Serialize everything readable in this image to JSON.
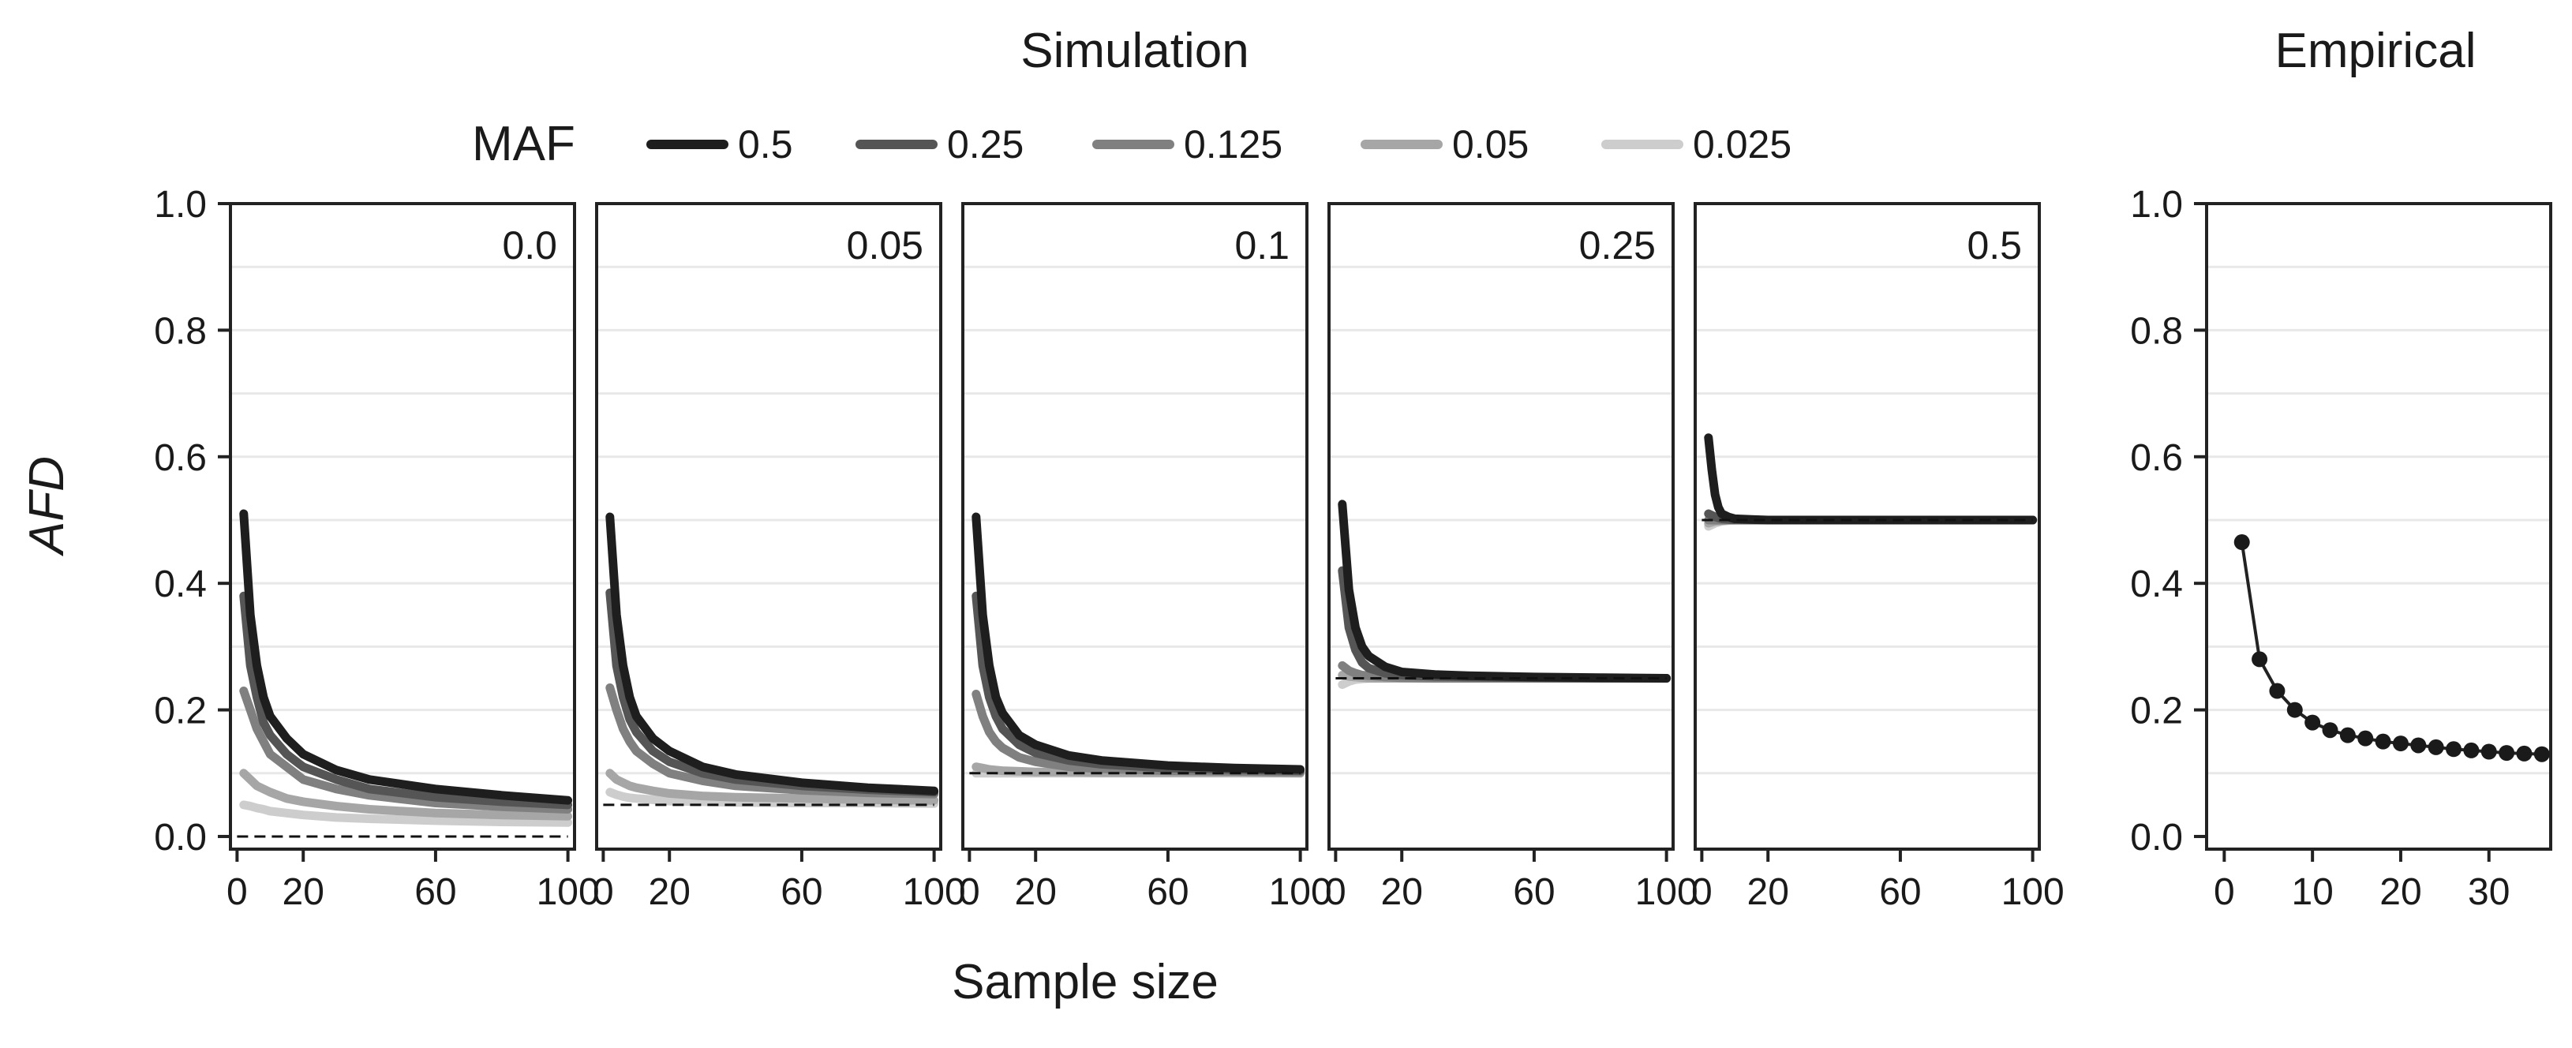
{
  "chart_data": {
    "type": "line",
    "simulation": {
      "title": "Simulation",
      "xlabel": "Sample size",
      "ylabel": "AFD",
      "legend_title": "MAF",
      "legend": [
        {
          "label": "0.5",
          "color": "#1e1e1e"
        },
        {
          "label": "0.25",
          "color": "#555555"
        },
        {
          "label": "0.125",
          "color": "#808080"
        },
        {
          "label": "0.05",
          "color": "#a6a6a6"
        },
        {
          "label": "0.025",
          "color": "#cdcdcd"
        }
      ],
      "xlim": [
        -2,
        102
      ],
      "ylim": [
        -0.02,
        1.0
      ],
      "xticks": [
        0,
        20,
        60,
        100
      ],
      "xtick_labels": [
        "0",
        "20",
        "60",
        "100"
      ],
      "yticks": [
        0.0,
        0.2,
        0.4,
        0.6,
        0.8,
        1.0
      ],
      "ytick_labels": [
        "0.0",
        "0.2",
        "0.4",
        "0.6",
        "0.8",
        "1.0"
      ],
      "panels": [
        {
          "label": "0.0",
          "baseline": 0.0,
          "series": [
            {
              "name": "0.5",
              "x": [
                2,
                4,
                6,
                8,
                10,
                15,
                20,
                30,
                40,
                60,
                80,
                100
              ],
              "y": [
                0.51,
                0.35,
                0.27,
                0.22,
                0.19,
                0.155,
                0.13,
                0.105,
                0.09,
                0.075,
                0.065,
                0.057
              ]
            },
            {
              "name": "0.25",
              "x": [
                2,
                4,
                6,
                8,
                10,
                15,
                20,
                30,
                40,
                60,
                80,
                100
              ],
              "y": [
                0.38,
                0.27,
                0.22,
                0.18,
                0.16,
                0.13,
                0.11,
                0.09,
                0.075,
                0.062,
                0.055,
                0.05
              ]
            },
            {
              "name": "0.125",
              "x": [
                2,
                4,
                6,
                8,
                10,
                15,
                20,
                30,
                40,
                60,
                80,
                100
              ],
              "y": [
                0.23,
                0.2,
                0.17,
                0.15,
                0.13,
                0.11,
                0.09,
                0.075,
                0.065,
                0.053,
                0.047,
                0.043
              ]
            },
            {
              "name": "0.05",
              "x": [
                2,
                4,
                6,
                8,
                10,
                15,
                20,
                30,
                40,
                60,
                80,
                100
              ],
              "y": [
                0.1,
                0.09,
                0.08,
                0.075,
                0.07,
                0.06,
                0.055,
                0.048,
                0.043,
                0.037,
                0.034,
                0.032
              ]
            },
            {
              "name": "0.025",
              "x": [
                2,
                4,
                6,
                8,
                10,
                15,
                20,
                30,
                40,
                60,
                80,
                100
              ],
              "y": [
                0.05,
                0.048,
                0.045,
                0.043,
                0.04,
                0.037,
                0.034,
                0.03,
                0.028,
                0.025,
                0.023,
                0.022
              ]
            }
          ]
        },
        {
          "label": "0.05",
          "baseline": 0.05,
          "series": [
            {
              "name": "0.5",
              "x": [
                2,
                4,
                6,
                8,
                10,
                15,
                20,
                30,
                40,
                60,
                80,
                100
              ],
              "y": [
                0.505,
                0.35,
                0.27,
                0.22,
                0.19,
                0.155,
                0.135,
                0.11,
                0.098,
                0.085,
                0.077,
                0.072
              ]
            },
            {
              "name": "0.25",
              "x": [
                2,
                4,
                6,
                8,
                10,
                15,
                20,
                30,
                40,
                60,
                80,
                100
              ],
              "y": [
                0.385,
                0.27,
                0.22,
                0.185,
                0.165,
                0.135,
                0.118,
                0.1,
                0.09,
                0.08,
                0.074,
                0.07
              ]
            },
            {
              "name": "0.125",
              "x": [
                2,
                4,
                6,
                8,
                10,
                15,
                20,
                30,
                40,
                60,
                80,
                100
              ],
              "y": [
                0.235,
                0.2,
                0.17,
                0.15,
                0.135,
                0.115,
                0.1,
                0.088,
                0.08,
                0.073,
                0.069,
                0.067
              ]
            },
            {
              "name": "0.05",
              "x": [
                2,
                4,
                6,
                8,
                10,
                15,
                20,
                30,
                40,
                60,
                80,
                100
              ],
              "y": [
                0.1,
                0.09,
                0.085,
                0.08,
                0.077,
                0.072,
                0.068,
                0.064,
                0.062,
                0.06,
                0.058,
                0.057
              ]
            },
            {
              "name": "0.025",
              "x": [
                2,
                4,
                6,
                8,
                10,
                15,
                20,
                30,
                40,
                60,
                80,
                100
              ],
              "y": [
                0.07,
                0.066,
                0.063,
                0.061,
                0.06,
                0.058,
                0.056,
                0.055,
                0.054,
                0.053,
                0.053,
                0.052
              ]
            }
          ]
        },
        {
          "label": "0.1",
          "baseline": 0.1,
          "series": [
            {
              "name": "0.5",
              "x": [
                2,
                4,
                6,
                8,
                10,
                15,
                20,
                30,
                40,
                60,
                80,
                100
              ],
              "y": [
                0.505,
                0.35,
                0.27,
                0.22,
                0.195,
                0.16,
                0.145,
                0.128,
                0.12,
                0.112,
                0.108,
                0.106
              ]
            },
            {
              "name": "0.25",
              "x": [
                2,
                4,
                6,
                8,
                10,
                15,
                20,
                30,
                40,
                60,
                80,
                100
              ],
              "y": [
                0.38,
                0.27,
                0.22,
                0.19,
                0.17,
                0.145,
                0.132,
                0.12,
                0.114,
                0.108,
                0.106,
                0.104
              ]
            },
            {
              "name": "0.125",
              "x": [
                2,
                4,
                6,
                8,
                10,
                15,
                20,
                30,
                40,
                60,
                80,
                100
              ],
              "y": [
                0.225,
                0.19,
                0.165,
                0.15,
                0.14,
                0.125,
                0.118,
                0.11,
                0.107,
                0.104,
                0.103,
                0.102
              ]
            },
            {
              "name": "0.05",
              "x": [
                2,
                4,
                6,
                8,
                10,
                15,
                20,
                30,
                40,
                60,
                80,
                100
              ],
              "y": [
                0.11,
                0.108,
                0.106,
                0.105,
                0.104,
                0.103,
                0.102,
                0.102,
                0.101,
                0.101,
                0.101,
                0.1
              ]
            },
            {
              "name": "0.025",
              "x": [
                2,
                4,
                6,
                8,
                10,
                15,
                20,
                30,
                40,
                60,
                80,
                100
              ],
              "y": [
                0.1,
                0.1,
                0.1,
                0.1,
                0.1,
                0.1,
                0.1,
                0.1,
                0.1,
                0.1,
                0.1,
                0.1
              ]
            }
          ]
        },
        {
          "label": "0.25",
          "baseline": 0.25,
          "series": [
            {
              "name": "0.5",
              "x": [
                2,
                4,
                6,
                8,
                10,
                15,
                20,
                30,
                40,
                60,
                80,
                100
              ],
              "y": [
                0.525,
                0.39,
                0.33,
                0.3,
                0.285,
                0.268,
                0.26,
                0.256,
                0.254,
                0.252,
                0.251,
                0.25
              ]
            },
            {
              "name": "0.25",
              "x": [
                2,
                4,
                6,
                8,
                10,
                15,
                20,
                30,
                40,
                60,
                80,
                100
              ],
              "y": [
                0.42,
                0.33,
                0.295,
                0.275,
                0.266,
                0.258,
                0.255,
                0.253,
                0.252,
                0.251,
                0.25,
                0.25
              ]
            },
            {
              "name": "0.125",
              "x": [
                2,
                4,
                6,
                8,
                10,
                15,
                20,
                30,
                40,
                60,
                80,
                100
              ],
              "y": [
                0.27,
                0.262,
                0.258,
                0.255,
                0.254,
                0.252,
                0.251,
                0.25,
                0.25,
                0.25,
                0.25,
                0.25
              ]
            },
            {
              "name": "0.05",
              "x": [
                2,
                4,
                6,
                8,
                10,
                15,
                20,
                30,
                40,
                60,
                80,
                100
              ],
              "y": [
                0.255,
                0.253,
                0.252,
                0.251,
                0.25,
                0.25,
                0.25,
                0.25,
                0.25,
                0.25,
                0.25,
                0.25
              ]
            },
            {
              "name": "0.025",
              "x": [
                2,
                4,
                6,
                8,
                10,
                15,
                20,
                30,
                40,
                60,
                80,
                100
              ],
              "y": [
                0.24,
                0.245,
                0.248,
                0.249,
                0.25,
                0.25,
                0.25,
                0.25,
                0.25,
                0.25,
                0.25,
                0.25
              ]
            }
          ]
        },
        {
          "label": "0.5",
          "baseline": 0.5,
          "series": [
            {
              "name": "0.5",
              "x": [
                2,
                3,
                4,
                5,
                6,
                8,
                10,
                15,
                20,
                30,
                40,
                60,
                80,
                100
              ],
              "y": [
                0.63,
                0.58,
                0.54,
                0.52,
                0.51,
                0.505,
                0.502,
                0.501,
                0.5,
                0.5,
                0.5,
                0.5,
                0.5,
                0.5
              ]
            },
            {
              "name": "0.25",
              "x": [
                2,
                4,
                6,
                8,
                10,
                15,
                20,
                30,
                40,
                60,
                80,
                100
              ],
              "y": [
                0.51,
                0.505,
                0.502,
                0.501,
                0.5,
                0.5,
                0.5,
                0.5,
                0.5,
                0.5,
                0.5,
                0.5
              ]
            },
            {
              "name": "0.125",
              "x": [
                2,
                4,
                6,
                8,
                10,
                15,
                20,
                30,
                40,
                60,
                80,
                100
              ],
              "y": [
                0.5,
                0.5,
                0.5,
                0.5,
                0.5,
                0.5,
                0.5,
                0.5,
                0.5,
                0.5,
                0.5,
                0.5
              ]
            },
            {
              "name": "0.05",
              "x": [
                2,
                4,
                6,
                8,
                10,
                15,
                20,
                30,
                40,
                60,
                80,
                100
              ],
              "y": [
                0.495,
                0.498,
                0.499,
                0.5,
                0.5,
                0.5,
                0.5,
                0.5,
                0.5,
                0.5,
                0.5,
                0.5
              ]
            },
            {
              "name": "0.025",
              "x": [
                2,
                4,
                6,
                8,
                10,
                15,
                20,
                30,
                40,
                60,
                80,
                100
              ],
              "y": [
                0.49,
                0.495,
                0.498,
                0.499,
                0.5,
                0.5,
                0.5,
                0.5,
                0.5,
                0.5,
                0.5,
                0.5
              ]
            }
          ]
        }
      ]
    },
    "empirical": {
      "title": "Empirical",
      "type": "line+scatter",
      "xlim": [
        -2,
        37
      ],
      "ylim": [
        -0.02,
        1.0
      ],
      "xticks": [
        0,
        10,
        20,
        30
      ],
      "xtick_labels": [
        "0",
        "10",
        "20",
        "30"
      ],
      "yticks": [
        0.0,
        0.2,
        0.4,
        0.6,
        0.8,
        1.0
      ],
      "ytick_labels": [
        "0.0",
        "0.2",
        "0.4",
        "0.6",
        "0.8",
        "1.0"
      ],
      "x": [
        2,
        4,
        6,
        8,
        10,
        12,
        14,
        16,
        18,
        20,
        22,
        24,
        26,
        28,
        30,
        32,
        34,
        36
      ],
      "y": [
        0.465,
        0.28,
        0.23,
        0.2,
        0.18,
        0.168,
        0.16,
        0.155,
        0.15,
        0.147,
        0.144,
        0.141,
        0.138,
        0.136,
        0.134,
        0.132,
        0.131,
        0.13
      ]
    }
  }
}
